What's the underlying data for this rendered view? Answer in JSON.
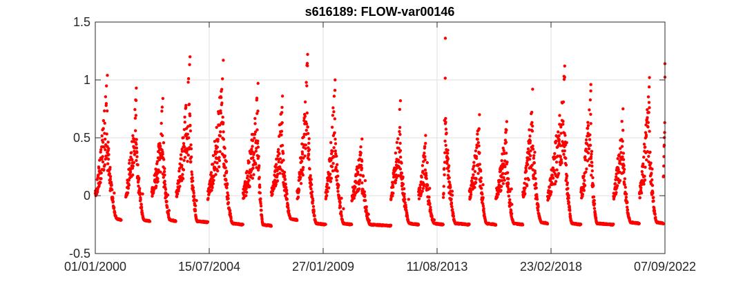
{
  "chart_data": {
    "type": "scatter",
    "title": "s616189: FLOW-var00146",
    "xlabel": "",
    "ylabel": "",
    "x_axis_type": "date",
    "xlim": [
      "2000-01-01",
      "2022-09-07"
    ],
    "ylim": [
      -0.5,
      1.5
    ],
    "x_ticks": [
      "2000-01-01",
      "2004-07-15",
      "2009-01-27",
      "2013-08-11",
      "2018-02-23",
      "2022-09-07"
    ],
    "x_tick_labels": [
      "01/01/2000",
      "15/07/2004",
      "27/01/2009",
      "11/08/2013",
      "23/02/2018",
      "07/09/2022"
    ],
    "y_ticks": [
      -0.5,
      0,
      0.5,
      1,
      1.5
    ],
    "y_tick_labels": [
      "-0.5",
      "0",
      "0.5",
      "1",
      "1.5"
    ],
    "grid": true,
    "legend": "none",
    "marker_color": "#ff0000",
    "baseline_flow": -0.22,
    "annual_cycles": [
      {
        "rise_start": "2000-01-01",
        "peak": "2000-06-25",
        "peak_value": 1.04,
        "dry_start": "2000-11-10",
        "dry_end": "2001-01-15",
        "baseline": -0.2
      },
      {
        "rise_start": "2001-03-20",
        "peak": "2001-08-20",
        "peak_value": 0.93,
        "dry_start": "2001-12-10",
        "dry_end": "2002-03-05",
        "baseline": -0.21
      },
      {
        "rise_start": "2002-04-01",
        "peak": "2002-09-10",
        "peak_value": 0.84,
        "dry_start": "2002-12-20",
        "dry_end": "2003-03-20",
        "baseline": -0.21
      },
      {
        "rise_start": "2003-03-25",
        "peak": "2003-10-10",
        "peak_value": 1.2,
        "dry_start": "2004-01-20",
        "dry_end": "2004-06-25",
        "baseline": -0.22
      },
      {
        "rise_start": "2004-06-25",
        "peak": "2005-02-05",
        "peak_value": 1.17,
        "dry_start": "2005-06-20",
        "dry_end": "2005-11-20",
        "baseline": -0.24
      },
      {
        "rise_start": "2005-11-20",
        "peak": "2006-06-25",
        "peak_value": 0.97,
        "dry_start": "2006-09-05",
        "dry_end": "2007-01-05",
        "baseline": -0.25
      },
      {
        "rise_start": "2007-01-05",
        "peak": "2007-06-15",
        "peak_value": 0.86,
        "dry_start": "2007-10-15",
        "dry_end": "2008-01-15",
        "baseline": -0.2
      },
      {
        "rise_start": "2008-01-15",
        "peak": "2008-06-15",
        "peak_value": 1.22,
        "dry_start": "2008-10-20",
        "dry_end": "2009-03-05",
        "baseline": -0.24
      },
      {
        "rise_start": "2009-03-05",
        "peak": "2009-07-20",
        "peak_value": 1.0,
        "dry_start": "2009-11-20",
        "dry_end": "2010-03-20",
        "baseline": -0.24
      },
      {
        "rise_start": "2010-03-20",
        "peak": "2010-08-15",
        "peak_value": 0.49,
        "dry_start": "2010-12-10",
        "dry_end": "2011-10-10",
        "baseline": -0.25
      },
      {
        "rise_start": "2011-10-10",
        "peak": "2012-02-25",
        "peak_value": 0.82,
        "dry_start": "2012-07-05",
        "dry_end": "2012-11-15",
        "baseline": -0.24
      },
      {
        "rise_start": "2012-11-15",
        "peak": "2013-02-25",
        "peak_value": 0.52,
        "dry_start": "2013-07-01",
        "dry_end": "2013-11-10",
        "baseline": -0.24
      },
      {
        "rise_start": "2013-11-10",
        "peak": "2013-12-10",
        "peak_value": 1.36,
        "dry_start": "2014-05-05",
        "dry_end": "2014-11-25",
        "baseline": -0.24
      },
      {
        "rise_start": "2014-11-25",
        "peak": "2015-04-20",
        "peak_value": 0.7,
        "dry_start": "2015-08-01",
        "dry_end": "2015-12-15",
        "baseline": -0.24
      },
      {
        "rise_start": "2015-12-15",
        "peak": "2016-05-20",
        "peak_value": 0.64,
        "dry_start": "2016-09-01",
        "dry_end": "2017-01-10",
        "baseline": -0.24
      },
      {
        "rise_start": "2017-01-10",
        "peak": "2017-06-01",
        "peak_value": 0.92,
        "dry_start": "2017-10-05",
        "dry_end": "2018-01-05",
        "baseline": -0.23
      },
      {
        "rise_start": "2018-01-05",
        "peak": "2018-09-10",
        "peak_value": 1.12,
        "dry_start": "2018-12-25",
        "dry_end": "2019-05-05",
        "baseline": -0.24
      },
      {
        "rise_start": "2019-05-05",
        "peak": "2019-09-25",
        "peak_value": 0.96,
        "dry_start": "2019-12-25",
        "dry_end": "2020-08-20",
        "baseline": -0.24
      },
      {
        "rise_start": "2020-08-20",
        "peak": "2021-01-05",
        "peak_value": 0.75,
        "dry_start": "2021-04-25",
        "dry_end": "2021-09-01",
        "baseline": -0.23
      },
      {
        "rise_start": "2021-09-01",
        "peak": "2022-01-25",
        "peak_value": 1.02,
        "dry_start": "2022-05-10",
        "dry_end": "2022-08-15",
        "baseline": -0.23
      },
      {
        "rise_start": "2022-08-15",
        "peak": "2022-09-07",
        "peak_value": 1.14,
        "dry_start": "2022-09-07",
        "dry_end": "2022-09-07",
        "baseline": 0.2
      }
    ]
  }
}
